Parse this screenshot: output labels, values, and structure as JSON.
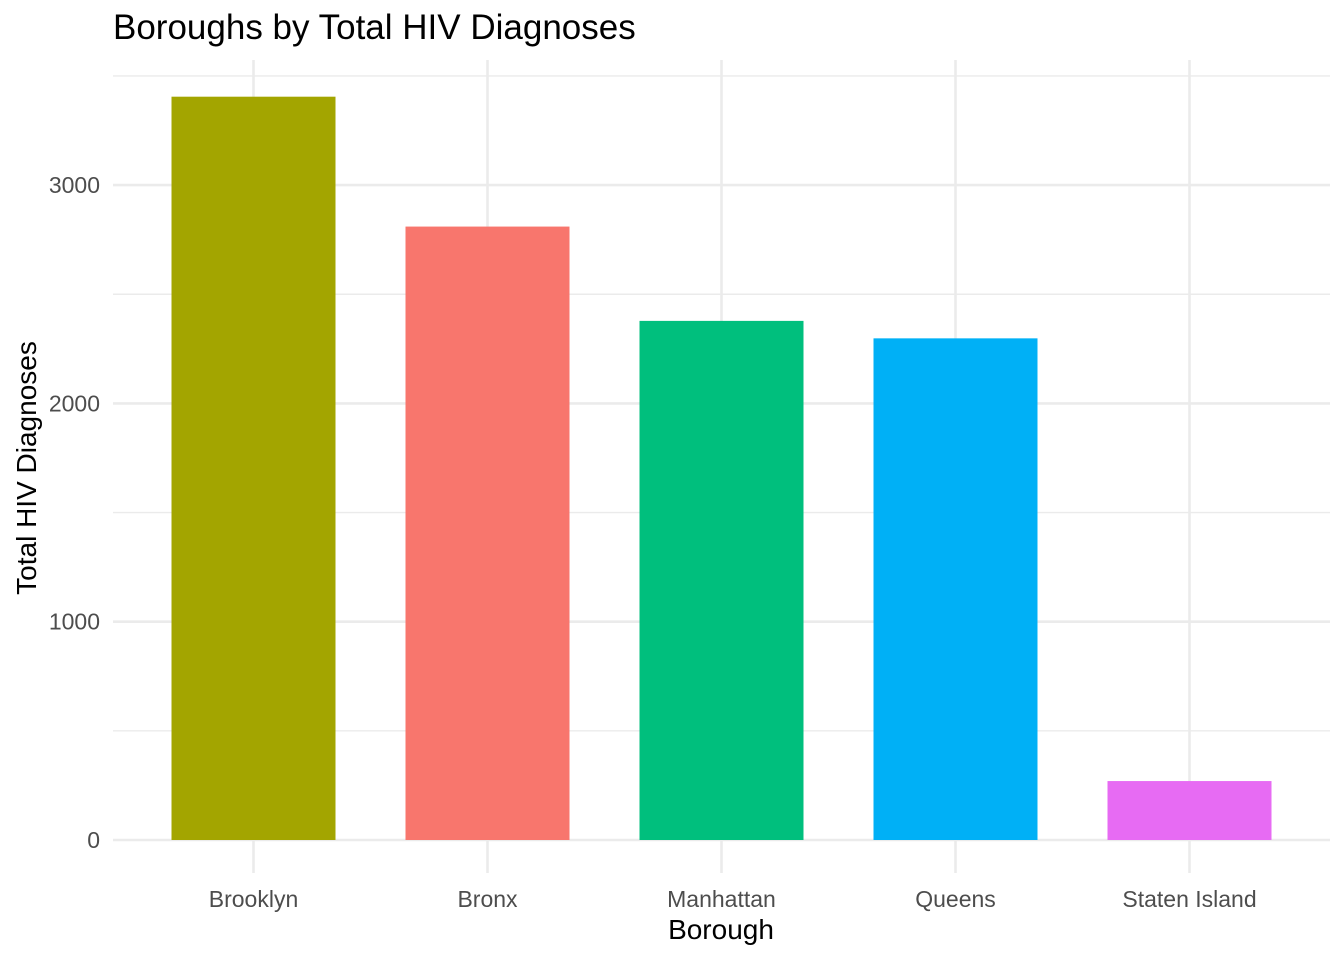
{
  "chart_data": {
    "type": "bar",
    "title": "Boroughs by Total HIV Diagnoses",
    "xlabel": "Borough",
    "ylabel": "Total HIV Diagnoses",
    "categories": [
      "Brooklyn",
      "Bronx",
      "Manhattan",
      "Queens",
      "Staten Island"
    ],
    "values": [
      3405,
      2810,
      2378,
      2298,
      270
    ],
    "colors": [
      "#A3A500",
      "#F8766D",
      "#00BF7D",
      "#00B0F6",
      "#E76BF3"
    ],
    "ylim": [
      0,
      3500
    ],
    "yticks": [
      0,
      1000,
      2000,
      3000
    ],
    "yticklabels": [
      "0",
      "1000",
      "2000",
      "3000"
    ],
    "grid": true,
    "legend": "none"
  }
}
